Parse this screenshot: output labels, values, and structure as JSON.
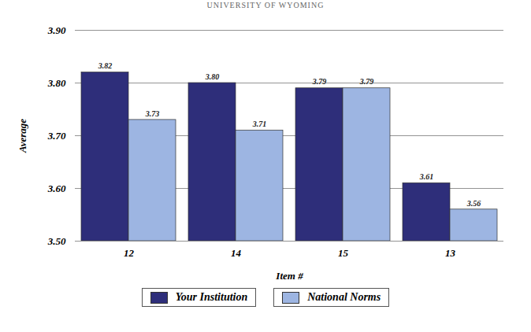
{
  "chart_data": {
    "type": "bar",
    "title": "UNIVERSITY OF WYOMING",
    "x_label": "Item #",
    "y_label": "Average",
    "categories": [
      "12",
      "14",
      "15",
      "13"
    ],
    "series": [
      {
        "name": "Your Institution",
        "color": "#2e2e7a",
        "values": [
          3.82,
          3.8,
          3.79,
          3.61
        ],
        "value_labels": [
          "3.82",
          "3.80",
          "3.79",
          "3.61"
        ]
      },
      {
        "name": "National Norms",
        "color": "#9db5e2",
        "values": [
          3.73,
          3.71,
          3.79,
          3.56
        ],
        "value_labels": [
          "3.73",
          "3.71",
          "3.79",
          "3.56"
        ]
      }
    ],
    "ylim": [
      3.5,
      3.9
    ],
    "yticks": [
      {
        "value": 3.5,
        "label": "3.50"
      },
      {
        "value": 3.6,
        "label": "3.60"
      },
      {
        "value": 3.7,
        "label": "3.70"
      },
      {
        "value": 3.8,
        "label": "3.80"
      },
      {
        "value": 3.9,
        "label": "3.90"
      }
    ],
    "grid": true,
    "data_labels": true,
    "legend": "bottom"
  }
}
